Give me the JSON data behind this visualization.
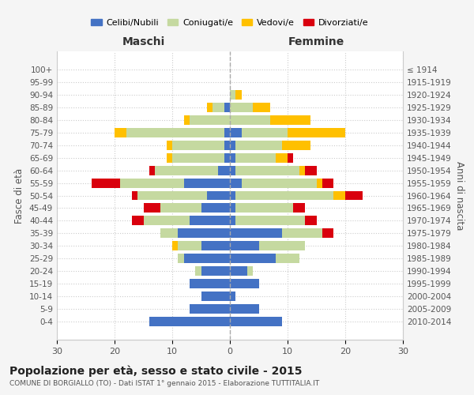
{
  "age_groups": [
    "0-4",
    "5-9",
    "10-14",
    "15-19",
    "20-24",
    "25-29",
    "30-34",
    "35-39",
    "40-44",
    "45-49",
    "50-54",
    "55-59",
    "60-64",
    "65-69",
    "70-74",
    "75-79",
    "80-84",
    "85-89",
    "90-94",
    "95-99",
    "100+"
  ],
  "birth_years": [
    "2010-2014",
    "2005-2009",
    "2000-2004",
    "1995-1999",
    "1990-1994",
    "1985-1989",
    "1980-1984",
    "1975-1979",
    "1970-1974",
    "1965-1969",
    "1960-1964",
    "1955-1959",
    "1950-1954",
    "1945-1949",
    "1940-1944",
    "1935-1939",
    "1930-1934",
    "1925-1929",
    "1920-1924",
    "1915-1919",
    "≤ 1914"
  ],
  "males": {
    "celibi": [
      14,
      7,
      5,
      7,
      5,
      8,
      5,
      9,
      7,
      5,
      4,
      8,
      2,
      1,
      1,
      1,
      0,
      1,
      0,
      0,
      0
    ],
    "coniugati": [
      0,
      0,
      0,
      0,
      1,
      1,
      4,
      3,
      8,
      7,
      12,
      11,
      11,
      9,
      9,
      17,
      7,
      2,
      0,
      0,
      0
    ],
    "vedovi": [
      0,
      0,
      0,
      0,
      0,
      0,
      1,
      0,
      0,
      0,
      0,
      0,
      0,
      1,
      1,
      2,
      1,
      1,
      0,
      0,
      0
    ],
    "divorziati": [
      0,
      0,
      0,
      0,
      0,
      0,
      0,
      0,
      2,
      3,
      1,
      5,
      1,
      0,
      0,
      0,
      0,
      0,
      0,
      0,
      0
    ]
  },
  "females": {
    "nubili": [
      9,
      5,
      1,
      5,
      3,
      8,
      5,
      9,
      1,
      1,
      1,
      2,
      1,
      1,
      1,
      2,
      0,
      0,
      0,
      0,
      0
    ],
    "coniugate": [
      0,
      0,
      0,
      0,
      1,
      4,
      8,
      7,
      12,
      10,
      17,
      13,
      11,
      7,
      8,
      8,
      7,
      4,
      1,
      0,
      0
    ],
    "vedove": [
      0,
      0,
      0,
      0,
      0,
      0,
      0,
      0,
      0,
      0,
      2,
      1,
      1,
      2,
      5,
      10,
      7,
      3,
      1,
      0,
      0
    ],
    "divorziate": [
      0,
      0,
      0,
      0,
      0,
      0,
      0,
      2,
      2,
      2,
      3,
      2,
      2,
      1,
      0,
      0,
      0,
      0,
      0,
      0,
      0
    ]
  },
  "colors": {
    "celibi": "#4472c4",
    "coniugati": "#c5d9a0",
    "vedovi": "#ffc000",
    "divorziati": "#d9000d"
  },
  "xlim": 30,
  "title": "Popolazione per età, sesso e stato civile - 2015",
  "subtitle": "COMUNE DI BORGIALLO (TO) - Dati ISTAT 1° gennaio 2015 - Elaborazione TUTTITALIA.IT",
  "ylabel_left": "Fasce di età",
  "ylabel_right": "Anni di nascita",
  "xlabel_left": "Maschi",
  "xlabel_right": "Femmine",
  "background_color": "#f5f5f5",
  "plot_bg_color": "#ffffff"
}
